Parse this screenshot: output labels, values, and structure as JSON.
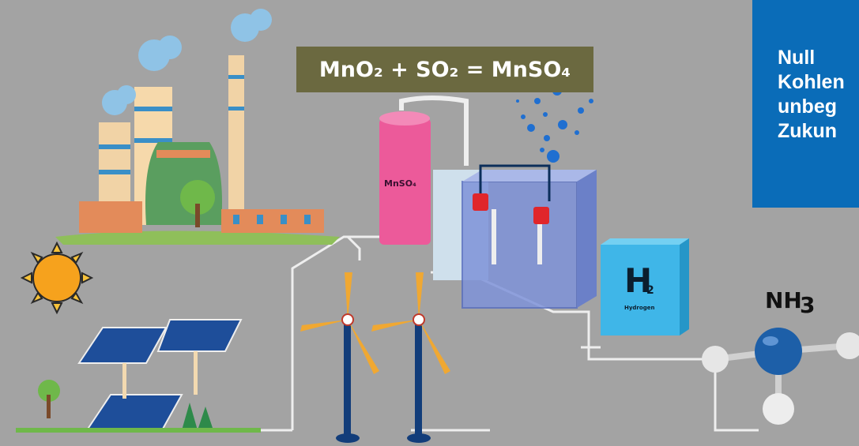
{
  "equation": "MnO₂ + SO₂ = MnSO₄",
  "info_box_lines": [
    "Null",
    "Kohlen",
    "unbeg",
    "Zukun"
  ],
  "tank_label": "MnSO₄",
  "hydrogen_cube": {
    "symbol": "H",
    "subscript": "2",
    "name": "Hydrogen"
  },
  "ammonia": {
    "symbol": "NH",
    "subscript": "3"
  },
  "colors": {
    "background": "#a3a3a3",
    "equation_box": "#6b6940",
    "info_box": "#0a6cb8",
    "pipe": "#eeeeee",
    "tank": "#ec5a9a",
    "hydrogen_cube": "#3fb6e8"
  }
}
